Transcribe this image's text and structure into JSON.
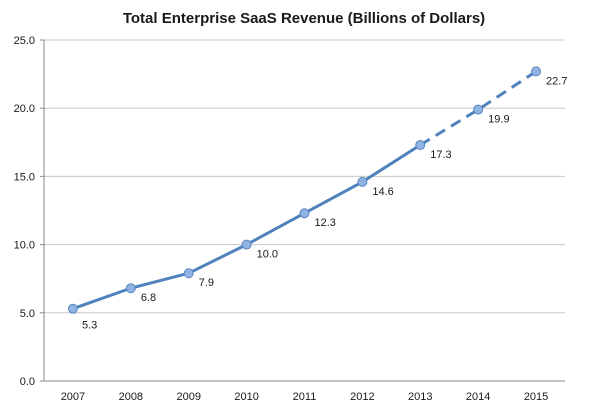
{
  "chart_data": {
    "type": "line",
    "title": "Total Enterprise SaaS Revenue (Billions of Dollars)",
    "xlabel": "",
    "ylabel": "",
    "categories": [
      "2007",
      "2008",
      "2009",
      "2010",
      "2011",
      "2012",
      "2013",
      "2014",
      "2015"
    ],
    "values": [
      5.3,
      6.8,
      7.9,
      10.0,
      12.3,
      14.6,
      17.3,
      19.9,
      22.7
    ],
    "data_labels": [
      "5.3",
      "6.8",
      "7.9",
      "10.0",
      "12.3",
      "14.6",
      "17.3",
      "19.9",
      "22.7"
    ],
    "solid_through": "2013",
    "dashed_from": "2013",
    "ylim": [
      0,
      25
    ],
    "yticks": [
      "0.0",
      "5.0",
      "10.0",
      "15.0",
      "20.0",
      "25.0"
    ],
    "grid": true,
    "legend": "none",
    "line_color": "#4f81bd",
    "marker_color": "#8fb4e3"
  }
}
